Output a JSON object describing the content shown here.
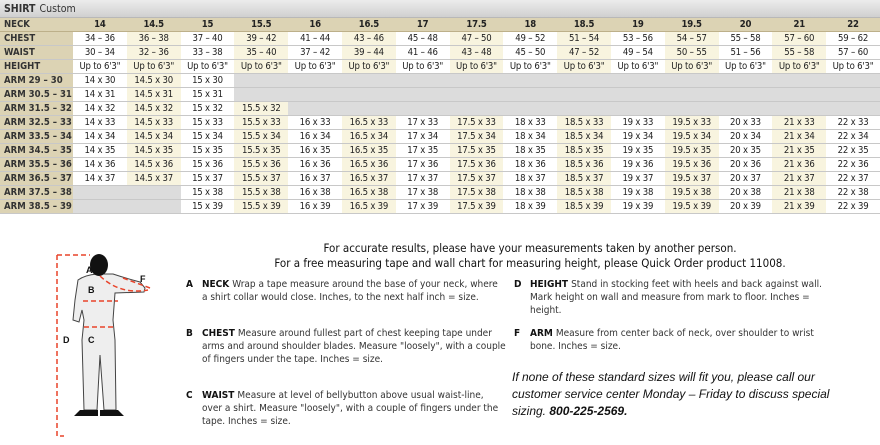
{
  "title": {
    "main": "SHIRT",
    "sub": "Custom"
  },
  "table": {
    "neck_label": "NECK",
    "sizes": [
      "14",
      "14.5",
      "15",
      "15.5",
      "16",
      "16.5",
      "17",
      "17.5",
      "18",
      "18.5",
      "19",
      "19.5",
      "20",
      "21",
      "22"
    ],
    "rows": [
      {
        "label": "CHEST",
        "cells": [
          "34 – 36",
          "36 – 38",
          "37 – 40",
          "39 – 42",
          "41 – 44",
          "43 – 46",
          "45 – 48",
          "47 – 50",
          "49 – 52",
          "51 – 54",
          "53 – 56",
          "54 – 57",
          "55 – 58",
          "57 – 60",
          "59 – 62"
        ]
      },
      {
        "label": "WAIST",
        "cells": [
          "30 – 34",
          "32 – 36",
          "33 – 38",
          "35 – 40",
          "37 – 42",
          "39 – 44",
          "41 – 46",
          "43 – 48",
          "45 – 50",
          "47 – 52",
          "49 – 54",
          "50 – 55",
          "51 – 56",
          "55 – 58",
          "57 – 60"
        ]
      },
      {
        "label": "HEIGHT",
        "cells": [
          "Up to 6'3\"",
          "Up to 6'3\"",
          "Up to 6'3\"",
          "Up to 6'3\"",
          "Up to 6'3\"",
          "Up to 6'3\"",
          "Up to 6'3\"",
          "Up to 6'3\"",
          "Up to 6'3\"",
          "Up to 6'3\"",
          "Up to 6'3\"",
          "Up to 6'3\"",
          "Up to 6'3\"",
          "Up to 6'3\"",
          "Up to 6'3\""
        ]
      },
      {
        "label": "ARM 29 – 30",
        "cells": [
          "14 x 30",
          "14.5 x 30",
          "15 x 30",
          null,
          null,
          null,
          null,
          null,
          null,
          null,
          null,
          null,
          null,
          null,
          null
        ]
      },
      {
        "label": "ARM 30.5 – 31",
        "cells": [
          "14 x 31",
          "14.5 x 31",
          "15 x 31",
          null,
          null,
          null,
          null,
          null,
          null,
          null,
          null,
          null,
          null,
          null,
          null
        ]
      },
      {
        "label": "ARM 31.5 – 32",
        "cells": [
          "14 x 32",
          "14.5 x 32",
          "15 x 32",
          "15.5 x 32",
          null,
          null,
          null,
          null,
          null,
          null,
          null,
          null,
          null,
          null,
          null
        ]
      },
      {
        "label": "ARM 32.5 – 33",
        "cells": [
          "14 x 33",
          "14.5 x 33",
          "15 x 33",
          "15.5 x 33",
          "16 x 33",
          "16.5 x 33",
          "17 x 33",
          "17.5 x 33",
          "18 x 33",
          "18.5 x 33",
          "19 x 33",
          "19.5 x 33",
          "20 x 33",
          "21 x 33",
          "22 x 33"
        ]
      },
      {
        "label": "ARM 33.5 – 34",
        "cells": [
          "14 x 34",
          "14.5 x 34",
          "15 x 34",
          "15.5 x 34",
          "16 x 34",
          "16.5 x 34",
          "17 x 34",
          "17.5 x 34",
          "18 x 34",
          "18.5 x 34",
          "19 x 34",
          "19.5 x 34",
          "20 x 34",
          "21 x 34",
          "22 x 34"
        ]
      },
      {
        "label": "ARM 34.5 – 35",
        "cells": [
          "14 x 35",
          "14.5 x 35",
          "15 x 35",
          "15.5 x 35",
          "16 x 35",
          "16.5 x 35",
          "17 x 35",
          "17.5 x 35",
          "18 x 35",
          "18.5 x 35",
          "19 x 35",
          "19.5 x 35",
          "20 x 35",
          "21 x 35",
          "22 x 35"
        ]
      },
      {
        "label": "ARM 35.5 – 36",
        "cells": [
          "14 x 36",
          "14.5 x 36",
          "15 x 36",
          "15.5 x 36",
          "16 x 36",
          "16.5 x 36",
          "17 x 36",
          "17.5 x 36",
          "18 x 36",
          "18.5 x 36",
          "19 x 36",
          "19.5 x 36",
          "20 x 36",
          "21 x 36",
          "22 x 36"
        ]
      },
      {
        "label": "ARM 36.5 – 37",
        "cells": [
          "14 x 37",
          "14.5 x 37",
          "15 x 37",
          "15.5 x 37",
          "16 x 37",
          "16.5 x 37",
          "17 x 37",
          "17.5 x 37",
          "18 x 37",
          "18.5 x 37",
          "19 x 37",
          "19.5 x 37",
          "20 x 37",
          "21 x 37",
          "22 x 37"
        ]
      },
      {
        "label": "ARM 37.5 – 38",
        "cells": [
          null,
          null,
          "15 x 38",
          "15.5 x 38",
          "16 x 38",
          "16.5 x 38",
          "17 x 38",
          "17.5 x 38",
          "18 x 38",
          "18.5 x 38",
          "19 x 38",
          "19.5 x 38",
          "20 x 38",
          "21 x 38",
          "22 x 38"
        ]
      },
      {
        "label": "ARM 38.5 – 39",
        "cells": [
          null,
          null,
          "15 x 39",
          "15.5 x 39",
          "16 x 39",
          "16.5 x 39",
          "17 x 39",
          "17.5 x 39",
          "18 x 39",
          "18.5 x 39",
          "19 x 39",
          "19.5 x 39",
          "20 x 39",
          "21 x 39",
          "22 x 39"
        ]
      }
    ]
  },
  "intro": {
    "line1": "For accurate results, please have your measurements taken by another person.",
    "line2": "For a free measuring tape and wall chart for measuring height, please Quick Order product 11008."
  },
  "instructions": [
    {
      "letter": "A",
      "title": "NECK",
      "text": "Wrap a tape measure around the base of your neck, where a shirt collar would close. Inches, to the next half inch = size."
    },
    {
      "letter": "B",
      "title": "CHEST",
      "text": "Measure around fullest part of chest keeping tape under arms and around shoulder blades. Measure \"loosely\", with a couple of fingers under the tape. Inches = size."
    },
    {
      "letter": "C",
      "title": "WAIST",
      "text": "Measure at level of bellybutton above usual waist-line, over a shirt. Measure \"loosely\", with a couple of fingers under the tape. Inches = size."
    },
    {
      "letter": "D",
      "title": "HEIGHT",
      "text": "Stand in stocking feet with heels and back against wall. Mark height on wall and measure from mark to floor. Inches = height."
    },
    {
      "letter": "F",
      "title": "ARM",
      "text": "Measure from center back of neck, over shoulder to wrist bone. Inches = size."
    }
  ],
  "note": {
    "text": "If none of these standard sizes will fit you, please call our customer service center Monday – Friday to discuss special sizing.",
    "phone": "800-225-2569."
  },
  "figure": {
    "labels": [
      "A",
      "B",
      "C",
      "D",
      "F"
    ]
  },
  "colors": {
    "header": "#dcd3b4",
    "cream": "#f8f4df",
    "unavailable": "#dcdcdc",
    "dash": "#e8432a"
  }
}
